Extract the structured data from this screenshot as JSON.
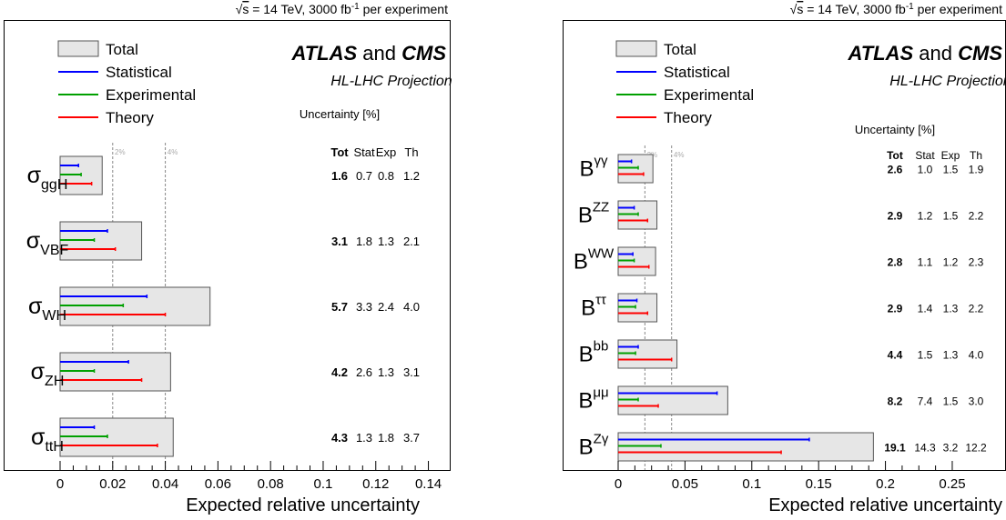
{
  "chart_data": [
    {
      "type": "bar",
      "header": "= 14 TeV, 3000 fb",
      "header_sup": "-1",
      "header_tail": " per experiment",
      "sqrt_label": "s",
      "title_main": "ATLAS",
      "title_and": "and",
      "title_cms": "CMS",
      "subtitle": "HL-LHC Projection",
      "uncertainty_label": "Uncertainty [%]",
      "column_headers": [
        "Tot",
        "Stat",
        "Exp",
        "Th"
      ],
      "xlabel": "Expected relative uncertainty",
      "xlim": [
        0,
        0.145
      ],
      "xticks": [
        "0",
        "0.02",
        "0.04",
        "0.06",
        "0.08",
        "0.1",
        "0.12",
        "0.14"
      ],
      "xtick_values": [
        0,
        0.02,
        0.04,
        0.06,
        0.08,
        0.1,
        0.12,
        0.14
      ],
      "reference_lines": [
        {
          "value": 0.02,
          "label": "2%"
        },
        {
          "value": 0.04,
          "label": "4%"
        }
      ],
      "legend": [
        "Total",
        "Statistical",
        "Experimental",
        "Theory"
      ],
      "legend_position": "top-left",
      "colors": {
        "total_fill": "#e6e6e6",
        "statistical": "#0000ff",
        "experimental": "#00a000",
        "theory": "#ff0000"
      },
      "categories": [
        {
          "sym": "σ",
          "sub": "ggH",
          "sup": "",
          "total": 0.016,
          "stat": 0.007,
          "exp": 0.008,
          "th": 0.012,
          "labels": [
            "1.6",
            "0.7",
            "0.8",
            "1.2"
          ]
        },
        {
          "sym": "σ",
          "sub": "VBF",
          "sup": "",
          "total": 0.031,
          "stat": 0.018,
          "exp": 0.013,
          "th": 0.021,
          "labels": [
            "3.1",
            "1.8",
            "1.3",
            "2.1"
          ]
        },
        {
          "sym": "σ",
          "sub": "WH",
          "sup": "",
          "total": 0.057,
          "stat": 0.033,
          "exp": 0.024,
          "th": 0.04,
          "labels": [
            "5.7",
            "3.3",
            "2.4",
            "4.0"
          ]
        },
        {
          "sym": "σ",
          "sub": "ZH",
          "sup": "",
          "total": 0.042,
          "stat": 0.026,
          "exp": 0.013,
          "th": 0.031,
          "labels": [
            "4.2",
            "2.6",
            "1.3",
            "3.1"
          ]
        },
        {
          "sym": "σ",
          "sub": "ttH",
          "sup": "",
          "total": 0.043,
          "stat": 0.013,
          "exp": 0.018,
          "th": 0.037,
          "labels": [
            "4.3",
            "1.3",
            "1.8",
            "3.7"
          ]
        }
      ]
    },
    {
      "type": "bar",
      "header": "= 14 TeV, 3000 fb",
      "header_sup": "-1",
      "header_tail": " per experiment",
      "sqrt_label": "s",
      "title_main": "ATLAS",
      "title_and": "and",
      "title_cms": "CMS",
      "subtitle": "HL-LHC Projection",
      "uncertainty_label": "Uncertainty [%]",
      "column_headers": [
        "Tot",
        "Stat",
        "Exp",
        "Th"
      ],
      "xlabel": "Expected relative uncertainty",
      "xlim": [
        0,
        0.28
      ],
      "xticks": [
        "0",
        "0.05",
        "0.1",
        "0.15",
        "0.2",
        "0.25"
      ],
      "xtick_values": [
        0,
        0.05,
        0.1,
        0.15,
        0.2,
        0.25
      ],
      "reference_lines": [
        {
          "value": 0.02,
          "label": "2%"
        },
        {
          "value": 0.04,
          "label": "4%"
        }
      ],
      "legend": [
        "Total",
        "Statistical",
        "Experimental",
        "Theory"
      ],
      "legend_position": "top-left",
      "colors": {
        "total_fill": "#e6e6e6",
        "statistical": "#0000ff",
        "experimental": "#00a000",
        "theory": "#ff0000"
      },
      "categories": [
        {
          "sym": "B",
          "sub": "",
          "sup": "γγ",
          "total": 0.026,
          "stat": 0.01,
          "exp": 0.015,
          "th": 0.019,
          "labels": [
            "2.6",
            "1.0",
            "1.5",
            "1.9"
          ]
        },
        {
          "sym": "B",
          "sub": "",
          "sup": "ZZ",
          "total": 0.029,
          "stat": 0.012,
          "exp": 0.015,
          "th": 0.022,
          "labels": [
            "2.9",
            "1.2",
            "1.5",
            "2.2"
          ]
        },
        {
          "sym": "B",
          "sub": "",
          "sup": "WW",
          "total": 0.028,
          "stat": 0.011,
          "exp": 0.012,
          "th": 0.023,
          "labels": [
            "2.8",
            "1.1",
            "1.2",
            "2.3"
          ]
        },
        {
          "sym": "B",
          "sub": "",
          "sup": "ττ",
          "total": 0.029,
          "stat": 0.014,
          "exp": 0.013,
          "th": 0.022,
          "labels": [
            "2.9",
            "1.4",
            "1.3",
            "2.2"
          ]
        },
        {
          "sym": "B",
          "sub": "",
          "sup": "bb",
          "total": 0.044,
          "stat": 0.015,
          "exp": 0.013,
          "th": 0.04,
          "labels": [
            "4.4",
            "1.5",
            "1.3",
            "4.0"
          ]
        },
        {
          "sym": "B",
          "sub": "",
          "sup": "μμ",
          "total": 0.082,
          "stat": 0.074,
          "exp": 0.015,
          "th": 0.03,
          "labels": [
            "8.2",
            "7.4",
            "1.5",
            "3.0"
          ]
        },
        {
          "sym": "B",
          "sub": "",
          "sup": "Zγ",
          "total": 0.191,
          "stat": 0.143,
          "exp": 0.032,
          "th": 0.122,
          "labels": [
            "19.1",
            "14.3",
            "3.2",
            "12.2"
          ]
        }
      ]
    }
  ]
}
